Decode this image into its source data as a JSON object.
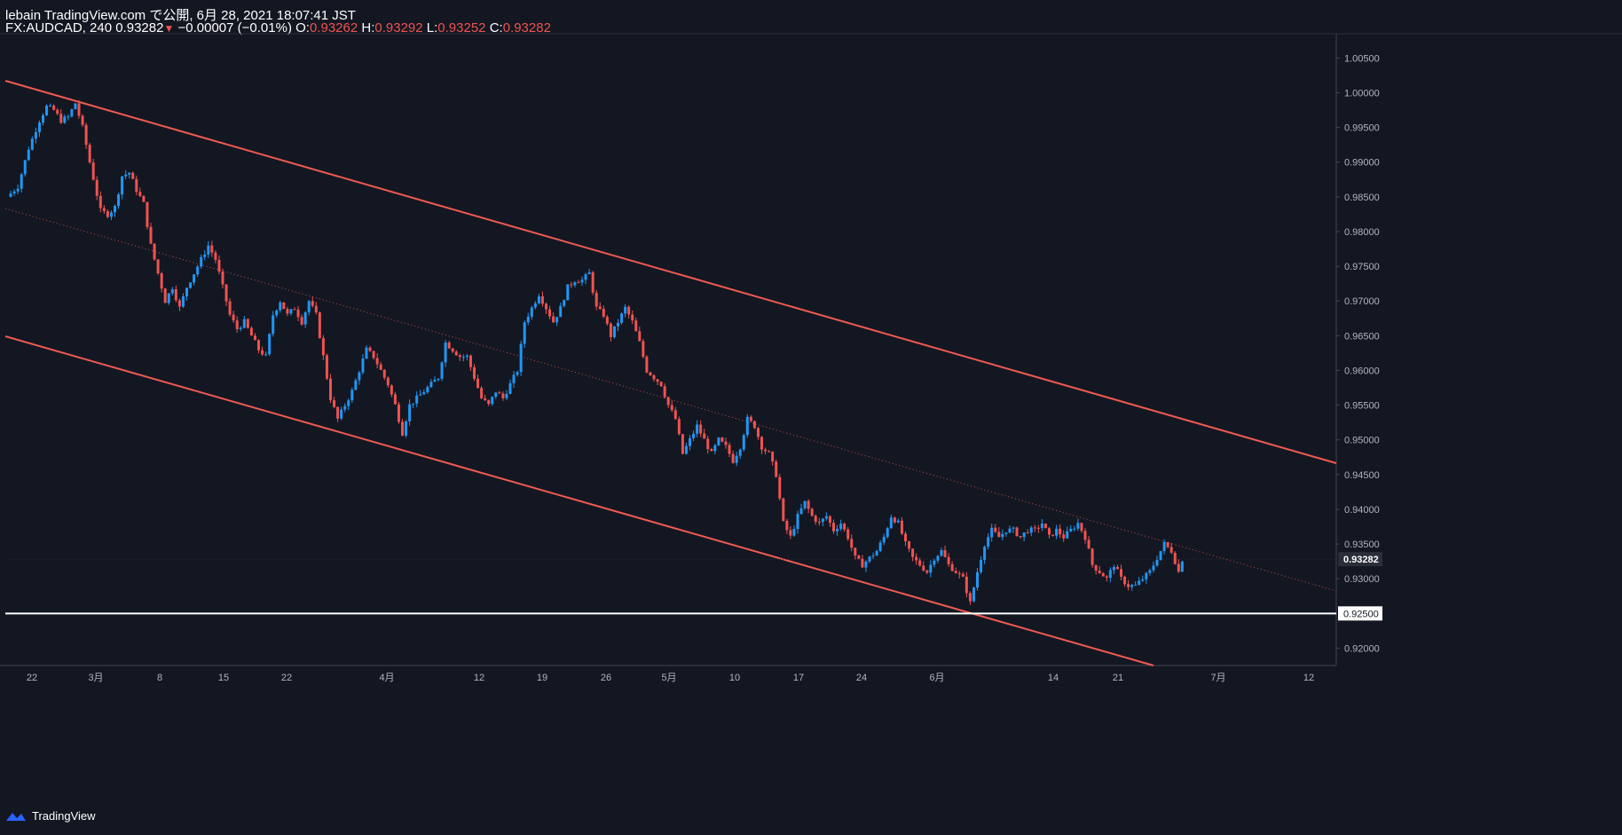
{
  "header": {
    "line1": "lebain TradingView.com で公開, 6月 28, 2021 18:07:41 JST",
    "symbol": "FX:AUDCAD, 240",
    "last": "0.93282",
    "change": "−0.00007 (−0.01%)",
    "o_label": "O:",
    "o_value": "0.93262",
    "h_label": "H:",
    "h_value": "0.93292",
    "l_label": "L:",
    "l_value": "0.93252",
    "c_label": "C:",
    "c_value": "0.93282"
  },
  "footer": {
    "brand": "TradingView"
  },
  "colors": {
    "background": "#131722",
    "up": "#2196f3",
    "down": "#ef5350",
    "channel": "#f05a52",
    "support": "#ffffff",
    "axis_text": "#b2b5be"
  },
  "chart_data": {
    "type": "candlestick",
    "x_ticks": [
      "22",
      "3月",
      "8",
      "15",
      "22",
      "4月",
      "12",
      "19",
      "26",
      "5月",
      "10",
      "17",
      "24",
      "6月",
      "14",
      "21",
      "7月",
      "12"
    ],
    "y_ticks": [
      "1.00500",
      "1.00000",
      "0.99500",
      "0.99000",
      "0.98500",
      "0.98000",
      "0.97500",
      "0.97000",
      "0.96500",
      "0.96000",
      "0.95500",
      "0.95000",
      "0.94500",
      "0.94000",
      "0.93500",
      "0.93000",
      "0.92000"
    ],
    "ylim": [
      0.9175,
      1.0085
    ],
    "last_price_label": "0.93282",
    "support_label": "0.92500",
    "support_level": 0.925,
    "path_points": [
      [
        0,
        0.985
      ],
      [
        3,
        0.9865
      ],
      [
        6,
        0.992
      ],
      [
        9,
        0.996
      ],
      [
        11,
        0.998
      ],
      [
        13,
        0.9975
      ],
      [
        15,
        0.996
      ],
      [
        17,
        0.9965
      ],
      [
        19,
        0.9985
      ],
      [
        21,
        0.995
      ],
      [
        23,
        0.99
      ],
      [
        26,
        0.983
      ],
      [
        28,
        0.9825
      ],
      [
        30,
        0.9835
      ],
      [
        32,
        0.988
      ],
      [
        34,
        0.9885
      ],
      [
        36,
        0.986
      ],
      [
        38,
        0.984
      ],
      [
        40,
        0.978
      ],
      [
        42,
        0.974
      ],
      [
        44,
        0.97
      ],
      [
        46,
        0.972
      ],
      [
        48,
        0.969
      ],
      [
        50,
        0.972
      ],
      [
        52,
        0.974
      ],
      [
        54,
        0.976
      ],
      [
        56,
        0.978
      ],
      [
        58,
        0.976
      ],
      [
        60,
        0.972
      ],
      [
        62,
        0.968
      ],
      [
        64,
        0.966
      ],
      [
        66,
        0.967
      ],
      [
        68,
        0.965
      ],
      [
        70,
        0.963
      ],
      [
        72,
        0.962
      ],
      [
        74,
        0.968
      ],
      [
        76,
        0.97
      ],
      [
        78,
        0.968
      ],
      [
        80,
        0.969
      ],
      [
        82,
        0.967
      ],
      [
        84,
        0.97
      ],
      [
        86,
        0.968
      ],
      [
        88,
        0.962
      ],
      [
        90,
        0.956
      ],
      [
        92,
        0.953
      ],
      [
        94,
        0.955
      ],
      [
        96,
        0.957
      ],
      [
        98,
        0.96
      ],
      [
        100,
        0.963
      ],
      [
        102,
        0.962
      ],
      [
        104,
        0.96
      ],
      [
        106,
        0.958
      ],
      [
        108,
        0.955
      ],
      [
        110,
        0.951
      ],
      [
        112,
        0.955
      ],
      [
        114,
        0.956
      ],
      [
        116,
        0.957
      ],
      [
        118,
        0.958
      ],
      [
        120,
        0.959
      ],
      [
        122,
        0.964
      ],
      [
        124,
        0.963
      ],
      [
        126,
        0.962
      ],
      [
        128,
        0.962
      ],
      [
        130,
        0.959
      ],
      [
        132,
        0.956
      ],
      [
        134,
        0.955
      ],
      [
        136,
        0.957
      ],
      [
        138,
        0.956
      ],
      [
        140,
        0.958
      ],
      [
        142,
        0.96
      ],
      [
        144,
        0.967
      ],
      [
        146,
        0.969
      ],
      [
        148,
        0.971
      ],
      [
        150,
        0.969
      ],
      [
        152,
        0.967
      ],
      [
        154,
        0.969
      ],
      [
        156,
        0.972
      ],
      [
        158,
        0.973
      ],
      [
        160,
        0.973
      ],
      [
        162,
        0.974
      ],
      [
        164,
        0.969
      ],
      [
        166,
        0.968
      ],
      [
        168,
        0.965
      ],
      [
        170,
        0.967
      ],
      [
        172,
        0.969
      ],
      [
        174,
        0.967
      ],
      [
        176,
        0.964
      ],
      [
        178,
        0.96
      ],
      [
        180,
        0.959
      ],
      [
        182,
        0.958
      ],
      [
        184,
        0.955
      ],
      [
        186,
        0.953
      ],
      [
        188,
        0.948
      ],
      [
        190,
        0.95
      ],
      [
        192,
        0.952
      ],
      [
        194,
        0.95
      ],
      [
        196,
        0.948
      ],
      [
        198,
        0.95
      ],
      [
        200,
        0.949
      ],
      [
        202,
        0.947
      ],
      [
        204,
        0.949
      ],
      [
        206,
        0.953
      ],
      [
        208,
        0.952
      ],
      [
        210,
        0.949
      ],
      [
        212,
        0.948
      ],
      [
        214,
        0.945
      ],
      [
        216,
        0.938
      ],
      [
        218,
        0.936
      ],
      [
        220,
        0.939
      ],
      [
        222,
        0.941
      ],
      [
        224,
        0.939
      ],
      [
        226,
        0.938
      ],
      [
        228,
        0.939
      ],
      [
        230,
        0.937
      ],
      [
        232,
        0.938
      ],
      [
        234,
        0.936
      ],
      [
        236,
        0.933
      ],
      [
        238,
        0.932
      ],
      [
        240,
        0.933
      ],
      [
        242,
        0.934
      ],
      [
        244,
        0.936
      ],
      [
        246,
        0.939
      ],
      [
        248,
        0.938
      ],
      [
        250,
        0.935
      ],
      [
        252,
        0.933
      ],
      [
        254,
        0.932
      ],
      [
        256,
        0.931
      ],
      [
        258,
        0.933
      ],
      [
        260,
        0.934
      ],
      [
        262,
        0.932
      ],
      [
        264,
        0.931
      ],
      [
        266,
        0.93
      ],
      [
        268,
        0.9265
      ],
      [
        270,
        0.931
      ],
      [
        272,
        0.935
      ],
      [
        274,
        0.937
      ],
      [
        276,
        0.936
      ],
      [
        278,
        0.937
      ],
      [
        280,
        0.937
      ],
      [
        282,
        0.936
      ],
      [
        284,
        0.937
      ],
      [
        286,
        0.937
      ],
      [
        288,
        0.938
      ],
      [
        290,
        0.936
      ],
      [
        292,
        0.937
      ],
      [
        294,
        0.936
      ],
      [
        296,
        0.937
      ],
      [
        298,
        0.938
      ],
      [
        300,
        0.936
      ],
      [
        302,
        0.932
      ],
      [
        304,
        0.931
      ],
      [
        306,
        0.93
      ],
      [
        308,
        0.932
      ],
      [
        310,
        0.93
      ],
      [
        312,
        0.929
      ],
      [
        314,
        0.929
      ],
      [
        316,
        0.93
      ],
      [
        318,
        0.931
      ],
      [
        320,
        0.933
      ],
      [
        322,
        0.935
      ],
      [
        324,
        0.934
      ],
      [
        326,
        0.931
      ],
      [
        327,
        0.9328
      ]
    ]
  }
}
